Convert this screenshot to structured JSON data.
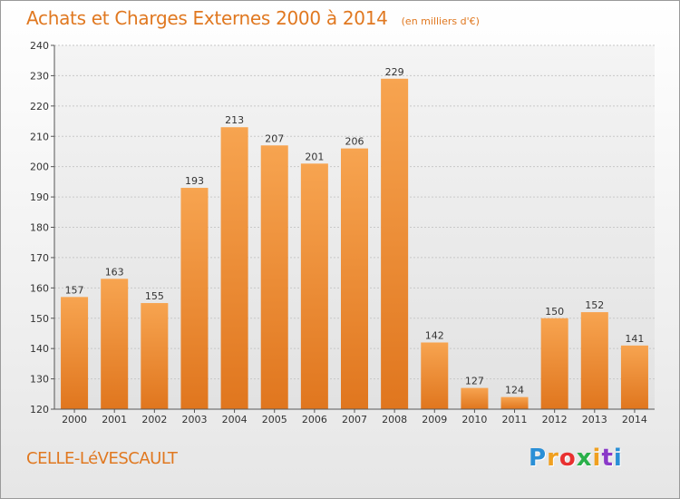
{
  "chart_data": {
    "type": "bar",
    "title": "Achats et Charges Externes 2000 à 2014",
    "subtitle": "(en milliers d'€)",
    "categories": [
      "2000",
      "2001",
      "2002",
      "2003",
      "2004",
      "2005",
      "2006",
      "2007",
      "2008",
      "2009",
      "2010",
      "2011",
      "2012",
      "2013",
      "2014"
    ],
    "values": [
      157,
      163,
      155,
      193,
      213,
      207,
      201,
      206,
      229,
      142,
      127,
      124,
      150,
      152,
      141
    ],
    "ylim": [
      120,
      240
    ],
    "yticks": [
      120,
      130,
      140,
      150,
      160,
      170,
      180,
      190,
      200,
      210,
      220,
      230,
      240
    ],
    "grid": true,
    "bar_color": "#f08a30"
  },
  "commune": "CELLE-LéVESCAULT",
  "logo": {
    "letters": [
      "P",
      "r",
      "o",
      "x",
      "i",
      "t",
      "i"
    ],
    "colors": [
      "#2a8fd6",
      "#f0a020",
      "#e83030",
      "#2ab04a",
      "#f0a020",
      "#8a3ac8",
      "#2a8fd6"
    ]
  }
}
